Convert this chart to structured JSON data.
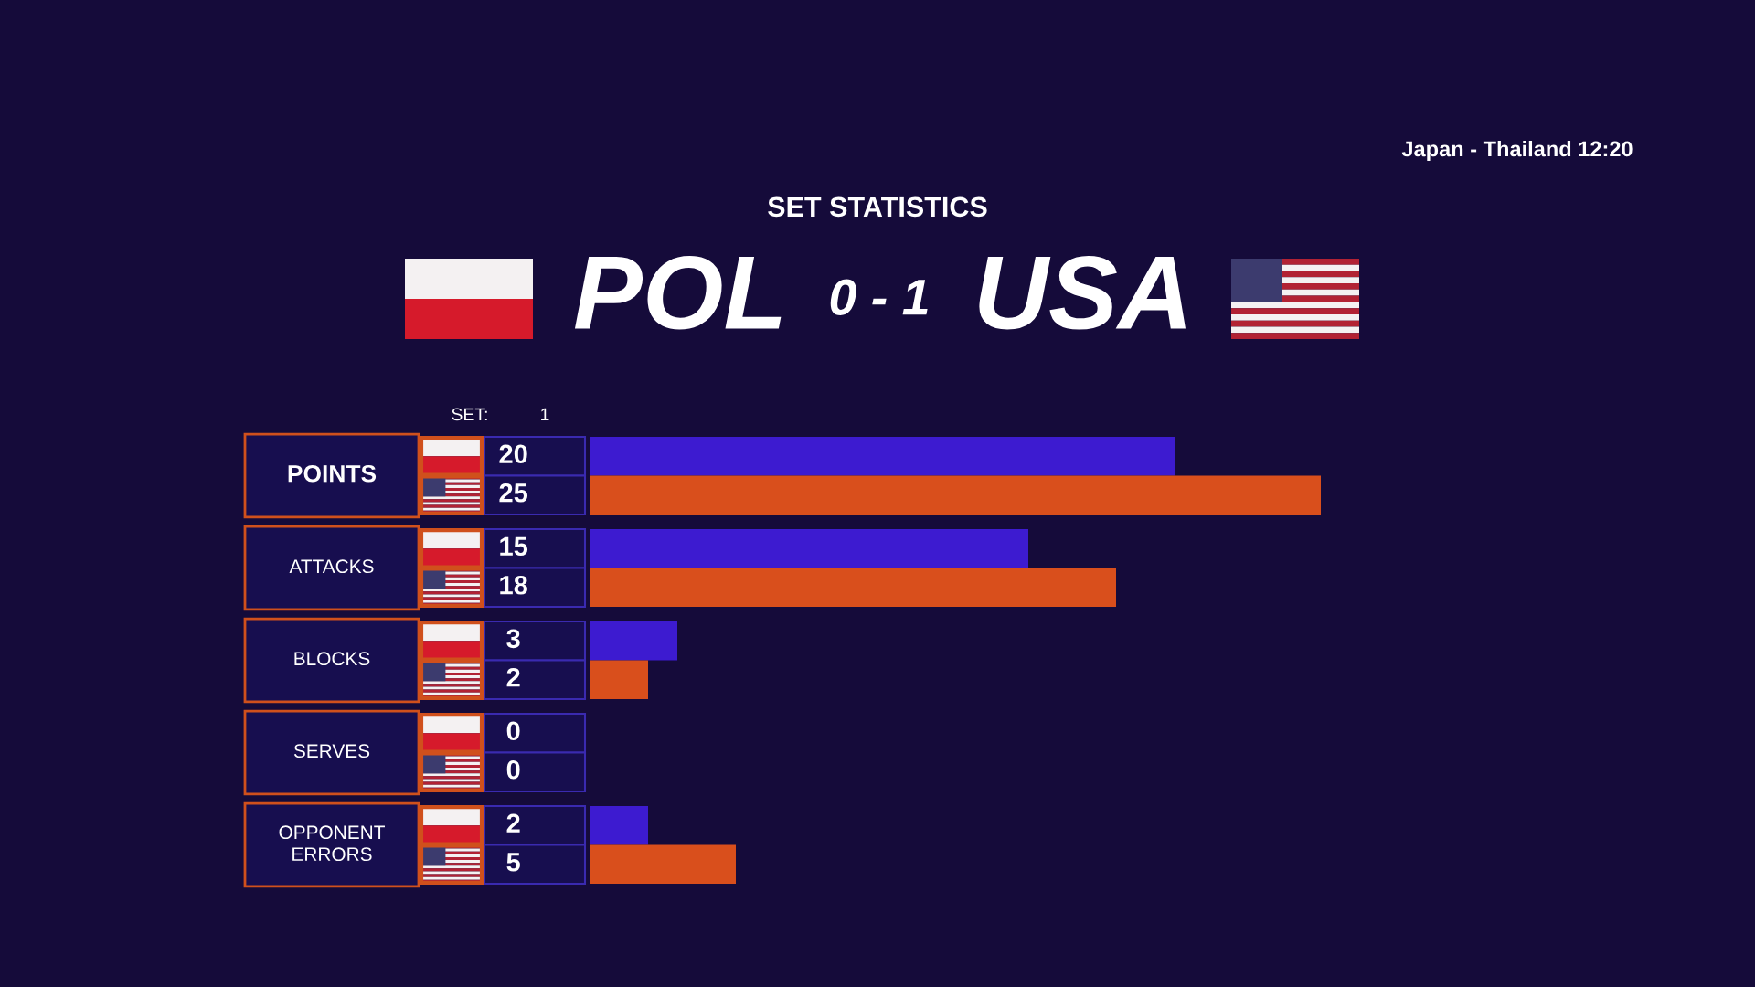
{
  "chart_data": {
    "type": "bar",
    "orientation": "horizontal",
    "title": "SET STATISTICS",
    "categories": [
      "POINTS",
      "ATTACKS",
      "BLOCKS",
      "SERVES",
      "OPPONENT\nERRORS"
    ],
    "series": [
      {
        "color": "#3d1bd0",
        "values": [
          20,
          15,
          3,
          0,
          2
        ]
      },
      {
        "color": "#d94f1c",
        "values": [
          25,
          18,
          2,
          0,
          5
        ]
      }
    ],
    "data_labels": true,
    "tick_labels": "y",
    "annotations": [
      "POL",
      "0 - 1",
      "USA",
      "SET:",
      "1",
      "Japan - Thailand 12:20"
    ]
  }
}
